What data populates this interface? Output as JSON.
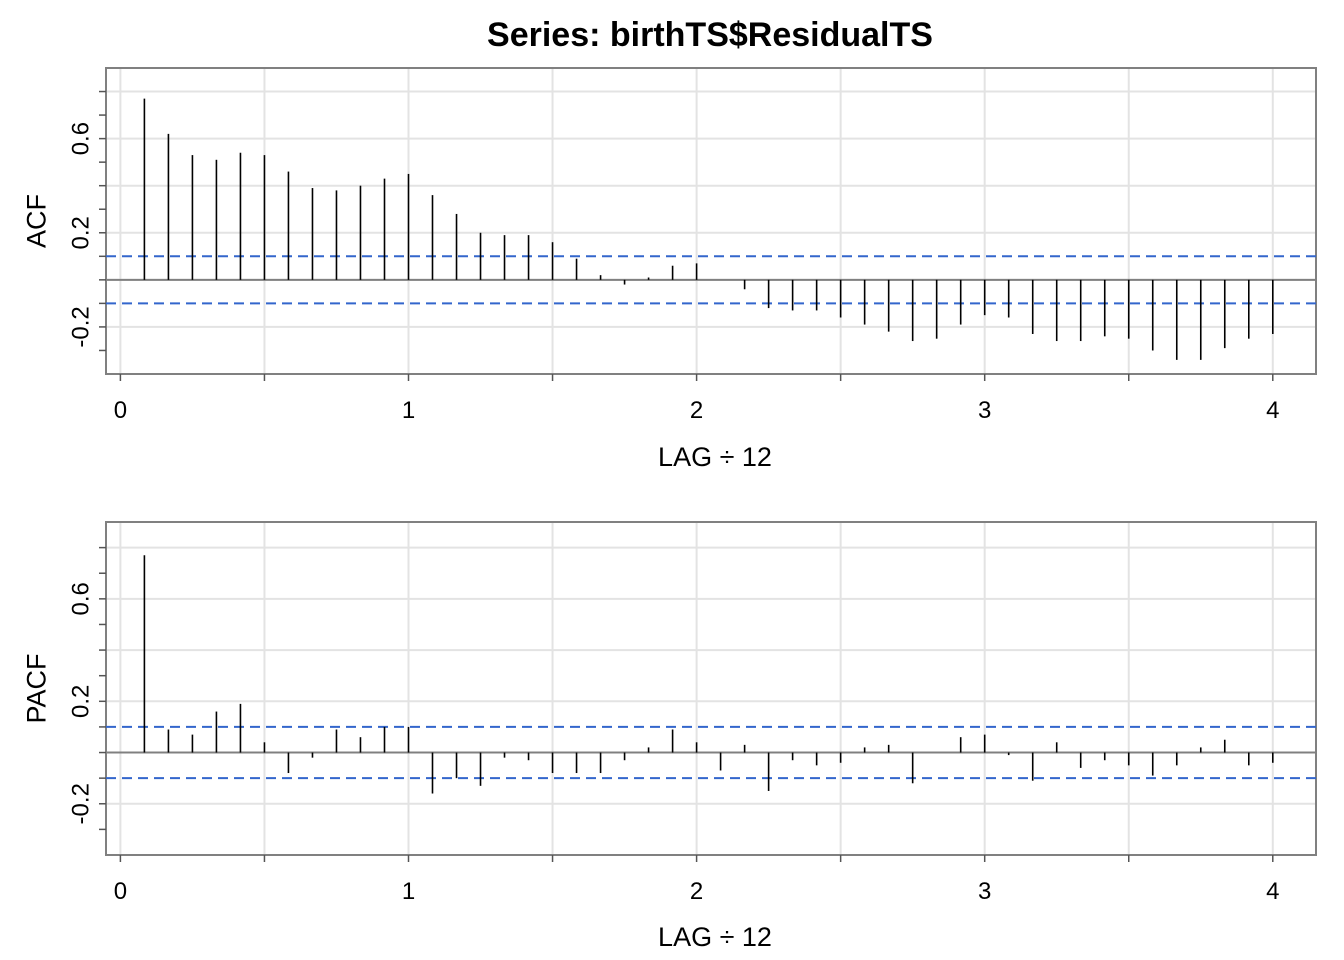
{
  "title": "Series:  birthTS$ResidualTS",
  "colors": {
    "grid": "#e3e3e3",
    "frame": "#808080",
    "bar": "#000000",
    "ci": "#3366cc",
    "zero": "#808080"
  },
  "chart_data": [
    {
      "type": "bar",
      "name": "acf-panel",
      "ylabel": "ACF",
      "xlabel": "LAG ÷ 12",
      "ylim": [
        -0.4,
        0.9
      ],
      "xlim": [
        -0.05,
        4.15
      ],
      "xticks": [
        {
          "value": 0,
          "label": "0"
        },
        {
          "value": 1,
          "label": "1"
        },
        {
          "value": 2,
          "label": "2"
        },
        {
          "value": 3,
          "label": "3"
        },
        {
          "value": 4,
          "label": "4"
        }
      ],
      "yticks": [
        {
          "value": -0.2,
          "label": "-0.2"
        },
        {
          "value": 0.2,
          "label": "0.2"
        },
        {
          "value": 0.6,
          "label": "0.6"
        }
      ],
      "ci": 0.1,
      "grid": true,
      "lags": [
        0.0833,
        0.1667,
        0.25,
        0.3333,
        0.4167,
        0.5,
        0.5833,
        0.6667,
        0.75,
        0.8333,
        0.9167,
        1.0,
        1.0833,
        1.1667,
        1.25,
        1.3333,
        1.4167,
        1.5,
        1.5833,
        1.6667,
        1.75,
        1.8333,
        1.9167,
        2.0,
        2.0833,
        2.1667,
        2.25,
        2.3333,
        2.4167,
        2.5,
        2.5833,
        2.6667,
        2.75,
        2.8333,
        2.9167,
        3.0,
        3.0833,
        3.1667,
        3.25,
        3.3333,
        3.4167,
        3.5,
        3.5833,
        3.6667,
        3.75,
        3.8333,
        3.9167,
        4.0
      ],
      "values": [
        0.77,
        0.62,
        0.53,
        0.51,
        0.54,
        0.53,
        0.46,
        0.39,
        0.38,
        0.4,
        0.43,
        0.45,
        0.36,
        0.28,
        0.2,
        0.19,
        0.19,
        0.16,
        0.09,
        0.02,
        -0.02,
        0.01,
        0.06,
        0.07,
        0.0,
        -0.04,
        -0.12,
        -0.13,
        -0.13,
        -0.16,
        -0.19,
        -0.22,
        -0.26,
        -0.25,
        -0.19,
        -0.15,
        -0.16,
        -0.23,
        -0.26,
        -0.26,
        -0.24,
        -0.25,
        -0.3,
        -0.34,
        -0.34,
        -0.29,
        -0.25,
        -0.23
      ]
    },
    {
      "type": "bar",
      "name": "pacf-panel",
      "ylabel": "PACF",
      "xlabel": "LAG ÷ 12",
      "ylim": [
        -0.4,
        0.9
      ],
      "xlim": [
        -0.05,
        4.15
      ],
      "xticks": [
        {
          "value": 0,
          "label": "0"
        },
        {
          "value": 1,
          "label": "1"
        },
        {
          "value": 2,
          "label": "2"
        },
        {
          "value": 3,
          "label": "3"
        },
        {
          "value": 4,
          "label": "4"
        }
      ],
      "yticks": [
        {
          "value": -0.2,
          "label": "-0.2"
        },
        {
          "value": 0.2,
          "label": "0.2"
        },
        {
          "value": 0.6,
          "label": "0.6"
        }
      ],
      "ci": 0.1,
      "grid": true,
      "lags": [
        0.0833,
        0.1667,
        0.25,
        0.3333,
        0.4167,
        0.5,
        0.5833,
        0.6667,
        0.75,
        0.8333,
        0.9167,
        1.0,
        1.0833,
        1.1667,
        1.25,
        1.3333,
        1.4167,
        1.5,
        1.5833,
        1.6667,
        1.75,
        1.8333,
        1.9167,
        2.0,
        2.0833,
        2.1667,
        2.25,
        2.3333,
        2.4167,
        2.5,
        2.5833,
        2.6667,
        2.75,
        2.8333,
        2.9167,
        3.0,
        3.0833,
        3.1667,
        3.25,
        3.3333,
        3.4167,
        3.5,
        3.5833,
        3.6667,
        3.75,
        3.8333,
        3.9167,
        4.0
      ],
      "values": [
        0.77,
        0.09,
        0.07,
        0.16,
        0.19,
        0.04,
        -0.08,
        -0.02,
        0.09,
        0.06,
        0.1,
        0.1,
        -0.16,
        -0.1,
        -0.13,
        -0.02,
        -0.03,
        -0.08,
        -0.08,
        -0.08,
        -0.03,
        0.02,
        0.09,
        0.04,
        -0.07,
        0.03,
        -0.15,
        -0.03,
        -0.05,
        -0.04,
        0.02,
        0.03,
        -0.12,
        0.0,
        0.06,
        0.07,
        -0.01,
        -0.11,
        0.04,
        -0.06,
        -0.03,
        -0.05,
        -0.09,
        -0.05,
        0.02,
        0.05,
        -0.05,
        -0.04
      ]
    }
  ]
}
